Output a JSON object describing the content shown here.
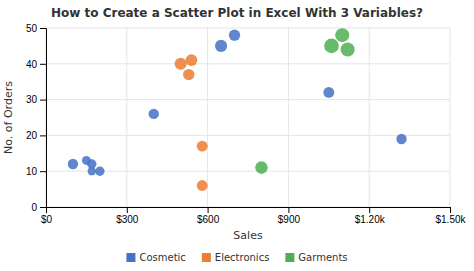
{
  "chart_data": {
    "type": "scatter",
    "title": "How to Create a Scatter Plot in Excel With 3 Variables?",
    "xlabel": "Sales",
    "ylabel": "No. of Orders",
    "series": [
      {
        "name": "Cosmetic",
        "color": "#4472C4",
        "x": [
          100,
          150,
          170,
          200,
          170,
          400,
          650,
          700,
          1050,
          1320
        ],
        "values": [
          12,
          13,
          12,
          10,
          10,
          26,
          45,
          48,
          32,
          19
        ],
        "sizes": [
          55,
          40,
          45,
          45,
          35,
          55,
          75,
          65,
          60,
          55
        ]
      },
      {
        "name": "Electronics",
        "color": "#ED7D31",
        "x": [
          500,
          540,
          530,
          580,
          580
        ],
        "values": [
          40,
          41,
          37,
          17,
          6
        ],
        "sizes": [
          75,
          70,
          65,
          60,
          60
        ]
      },
      {
        "name": "Garments",
        "color": "#4CAF50",
        "x": [
          800,
          1060,
          1100,
          1120
        ],
        "values": [
          11,
          45,
          48,
          44
        ],
        "sizes": [
          80,
          110,
          100,
          100
        ]
      }
    ],
    "xlim": [
      0,
      1500
    ],
    "xticks": [
      {
        "value": 0,
        "label": "$0"
      },
      {
        "value": 300,
        "label": "$300"
      },
      {
        "value": 600,
        "label": "$600"
      },
      {
        "value": 900,
        "label": "$900"
      },
      {
        "value": 1200,
        "label": "$1.20k"
      },
      {
        "value": 1500,
        "label": "$1.50k"
      }
    ],
    "ylim": [
      0,
      50
    ],
    "yticks": [
      0,
      10,
      20,
      30,
      40,
      50
    ],
    "grid": true
  }
}
